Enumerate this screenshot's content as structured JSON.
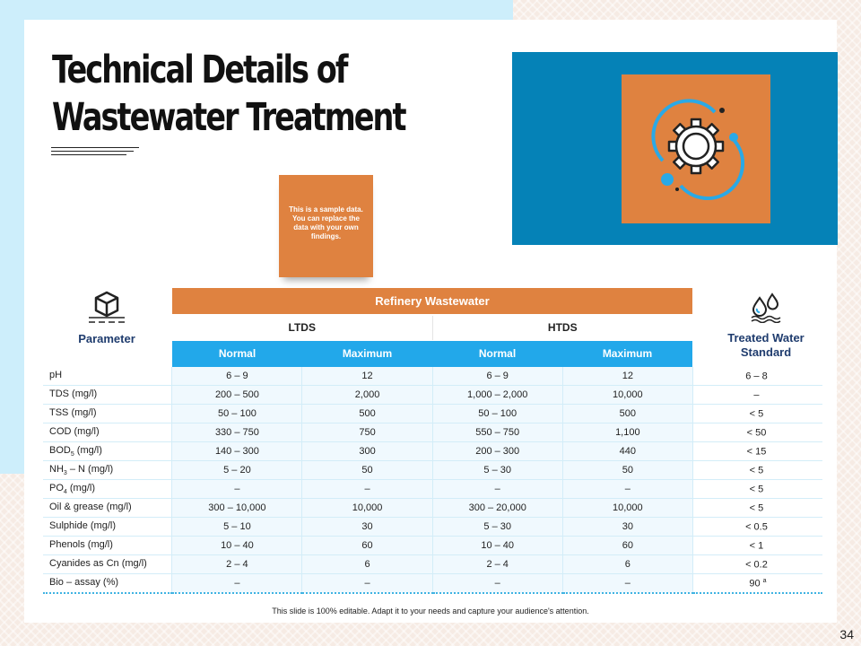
{
  "slide": {
    "title_line1": "Technical Details of",
    "title_line2": "Wastewater Treatment",
    "note": "This is a sample data. You can replace the data with your own findings.",
    "footer": "This slide is 100% editable. Adapt it to your needs and capture your audience's attention.",
    "page_number": "34",
    "hero_icon": "gear-cycle-icon"
  },
  "table": {
    "param_header": "Parameter",
    "param_icon": "cube-icon",
    "group_header": "Refinery Wastewater",
    "subgroups": [
      "LTDS",
      "HTDS"
    ],
    "columns": [
      "Normal",
      "Maximum",
      "Normal",
      "Maximum"
    ],
    "standard_header_line1": "Treated Water",
    "standard_header_line2": "Standard",
    "standard_icon": "water-drops-icon",
    "rows": [
      {
        "param": "pH",
        "sub": "",
        "unit": "",
        "v": [
          "6 – 9",
          "12",
          "6 – 9",
          "12"
        ],
        "std": "6 – 8",
        "std_sup": ""
      },
      {
        "param": "TDS (mg/l)",
        "sub": "",
        "unit": "",
        "v": [
          "200 – 500",
          "2,000",
          "1,000 – 2,000",
          "10,000"
        ],
        "std": "–",
        "std_sup": ""
      },
      {
        "param": "TSS (mg/l)",
        "sub": "",
        "unit": "",
        "v": [
          "50 – 100",
          "500",
          "50 – 100",
          "500"
        ],
        "std": "< 5",
        "std_sup": ""
      },
      {
        "param": "COD (mg/l)",
        "sub": "",
        "unit": "",
        "v": [
          "330 – 750",
          "750",
          "550 – 750",
          "1,100"
        ],
        "std": "< 50",
        "std_sup": ""
      },
      {
        "param": "BOD",
        "sub": "5",
        "unit": " (mg/l)",
        "v": [
          "140 – 300",
          "300",
          "200 – 300",
          "440"
        ],
        "std": "< 15",
        "std_sup": ""
      },
      {
        "param": "NH",
        "sub": "3",
        "unit": " – N (mg/l)",
        "v": [
          "5 – 20",
          "50",
          "5 – 30",
          "50"
        ],
        "std": "< 5",
        "std_sup": ""
      },
      {
        "param": "PO",
        "sub": "4",
        "unit": " (mg/l)",
        "v": [
          "–",
          "–",
          "–",
          "–"
        ],
        "std": "< 5",
        "std_sup": ""
      },
      {
        "param": "Oil & grease (mg/l)",
        "sub": "",
        "unit": "",
        "v": [
          "300 – 10,000",
          "10,000",
          "300 – 20,000",
          "10,000"
        ],
        "std": "< 5",
        "std_sup": ""
      },
      {
        "param": "Sulphide (mg/l)",
        "sub": "",
        "unit": "",
        "v": [
          "5 – 10",
          "30",
          "5 – 30",
          "30"
        ],
        "std": "< 0.5",
        "std_sup": ""
      },
      {
        "param": "Phenols (mg/l)",
        "sub": "",
        "unit": "",
        "v": [
          "10 – 40",
          "60",
          "10 – 40",
          "60"
        ],
        "std": "< 1",
        "std_sup": ""
      },
      {
        "param": "Cyanides as Cn (mg/l)",
        "sub": "",
        "unit": "",
        "v": [
          "2 – 4",
          "6",
          "2 – 4",
          "6"
        ],
        "std": "< 0.2",
        "std_sup": ""
      },
      {
        "param": "Bio – assay (%)",
        "sub": "",
        "unit": "",
        "v": [
          "–",
          "–",
          "–",
          "–"
        ],
        "std": "90",
        "std_sup": "a"
      }
    ]
  },
  "colors": {
    "orange": "#df8240",
    "blue": "#0582b7",
    "light_blue": "#22a8ea",
    "navy": "#1f3c6e"
  }
}
